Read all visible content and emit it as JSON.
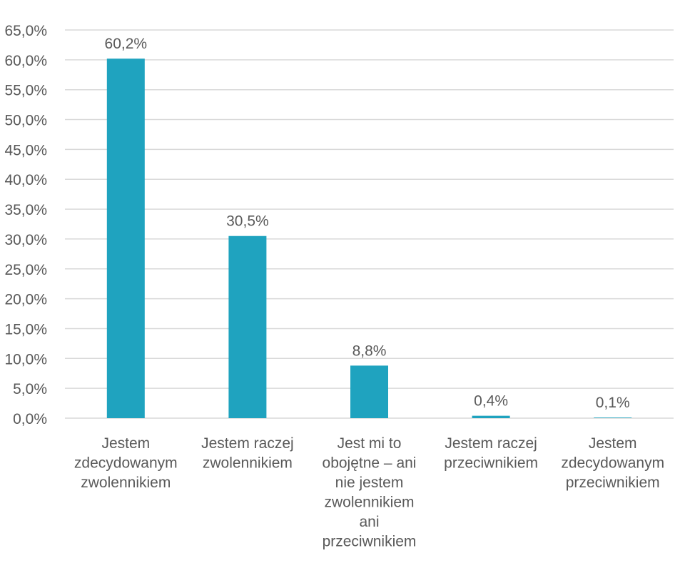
{
  "chart_data": {
    "type": "bar",
    "categories": [
      [
        "Jestem",
        "zdecydowanym",
        "zwolennikiem"
      ],
      [
        "Jestem raczej",
        "zwolennikiem"
      ],
      [
        "Jest mi to",
        "obojętne – ani",
        "nie jestem",
        "zwolennikiem",
        "ani",
        "przeciwnikiem"
      ],
      [
        "Jestem raczej",
        "przeciwnikiem"
      ],
      [
        "Jestem",
        "zdecydowanym",
        "przeciwnikiem"
      ]
    ],
    "values": [
      60.2,
      30.5,
      8.8,
      0.4,
      0.1
    ],
    "value_labels": [
      "60,2%",
      "30,5%",
      "8,8%",
      "0,4%",
      "0,1%"
    ],
    "yticks": [
      "0,0%",
      "5,0%",
      "10,0%",
      "15,0%",
      "20,0%",
      "25,0%",
      "30,0%",
      "35,0%",
      "40,0%",
      "45,0%",
      "50,0%",
      "55,0%",
      "60,0%",
      "65,0%"
    ],
    "ylim": [
      0,
      65
    ],
    "ytick_step": 5,
    "grid": true,
    "legend": "none",
    "colors": {
      "bar": "#1fa3bf",
      "grid": "#d9d9d9",
      "text": "#595959"
    }
  }
}
